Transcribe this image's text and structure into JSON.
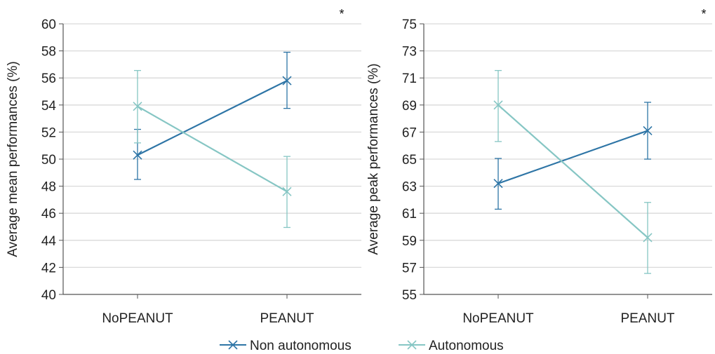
{
  "chart_data": [
    {
      "type": "line",
      "ylabel": "Average mean performances (%)",
      "categories": [
        "NoPEANUT",
        "PEANUT"
      ],
      "ylim": [
        40,
        60
      ],
      "yticks": [
        "40",
        "42",
        "44",
        "46",
        "48",
        "50",
        "52",
        "54",
        "56",
        "58",
        "60"
      ],
      "annotation": "*",
      "grid": true,
      "series": [
        {
          "name": "Non autonomous",
          "color": "#2e75a6",
          "values": [
            50.3,
            55.8
          ],
          "err_low": [
            48.5,
            53.75
          ],
          "err_high": [
            52.2,
            57.9
          ]
        },
        {
          "name": "Autonomous",
          "color": "#86c6c4",
          "values": [
            53.9,
            47.6
          ],
          "err_low": [
            51.2,
            44.95
          ],
          "err_high": [
            56.55,
            50.2
          ]
        }
      ]
    },
    {
      "type": "line",
      "ylabel": "Average peak performances (%)",
      "categories": [
        "NoPEANUT",
        "PEANUT"
      ],
      "ylim": [
        55,
        75
      ],
      "yticks": [
        "55",
        "57",
        "59",
        "61",
        "63",
        "65",
        "67",
        "69",
        "71",
        "73",
        "75"
      ],
      "annotation": "*",
      "grid": true,
      "series": [
        {
          "name": "Non autonomous",
          "color": "#2e75a6",
          "values": [
            63.2,
            67.1
          ],
          "err_low": [
            61.3,
            65.0
          ],
          "err_high": [
            65.05,
            69.2
          ]
        },
        {
          "name": "Autonomous",
          "color": "#86c6c4",
          "values": [
            69.0,
            59.2
          ],
          "err_low": [
            66.3,
            56.55
          ],
          "err_high": [
            71.55,
            61.8
          ]
        }
      ]
    }
  ],
  "legend": {
    "position": "bottom-center",
    "items": [
      {
        "label": "Non autonomous",
        "color": "#2e75a6"
      },
      {
        "label": "Autonomous",
        "color": "#86c6c4"
      }
    ]
  }
}
